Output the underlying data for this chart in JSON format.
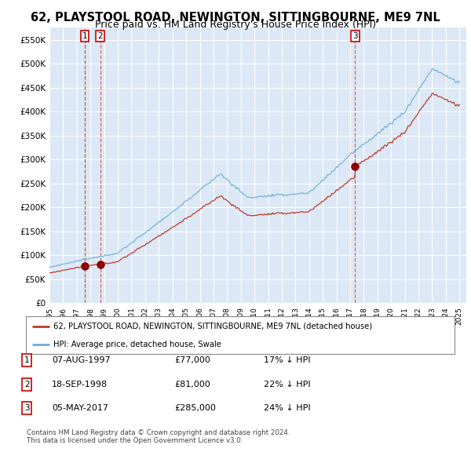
{
  "title": "62, PLAYSTOOL ROAD, NEWINGTON, SITTINGBOURNE, ME9 7NL",
  "subtitle": "Price paid vs. HM Land Registry's House Price Index (HPI)",
  "title_fontsize": 10.5,
  "subtitle_fontsize": 9,
  "background_color": "#dce8f5",
  "plot_bg_color": "#dce8f5",
  "grid_color": "#ffffff",
  "ylim": [
    0,
    575000
  ],
  "yticks": [
    0,
    50000,
    100000,
    150000,
    200000,
    250000,
    300000,
    350000,
    400000,
    450000,
    500000,
    550000
  ],
  "ytick_labels": [
    "£0",
    "£50K",
    "£100K",
    "£150K",
    "£200K",
    "£250K",
    "£300K",
    "£350K",
    "£400K",
    "£450K",
    "£500K",
    "£550K"
  ],
  "hpi_color": "#6baed6",
  "price_color": "#c0392b",
  "sale_marker_color": "#8b0000",
  "dashed_line_color_red": "#e74c3c",
  "dashed_line_color_blue": "#6baed6",
  "legend_label_price": "62, PLAYSTOOL ROAD, NEWINGTON, SITTINGBOURNE, ME9 7NL (detached house)",
  "legend_label_hpi": "HPI: Average price, detached house, Swale",
  "sales": [
    {
      "date_year": 1997.58,
      "price": 77000,
      "label": "1",
      "dashed": "both"
    },
    {
      "date_year": 1998.72,
      "price": 81000,
      "label": "2",
      "dashed": "red"
    },
    {
      "date_year": 2017.35,
      "price": 285000,
      "label": "3",
      "dashed": "red"
    }
  ],
  "footer_line1": "Contains HM Land Registry data © Crown copyright and database right 2024.",
  "footer_line2": "This data is licensed under the Open Government Licence v3.0.",
  "table_rows": [
    {
      "num": "1",
      "date": "07-AUG-1997",
      "price": "£77,000",
      "hpi": "17% ↓ HPI"
    },
    {
      "num": "2",
      "date": "18-SEP-1998",
      "price": "£81,000",
      "hpi": "22% ↓ HPI"
    },
    {
      "num": "3",
      "date": "05-MAY-2017",
      "price": "£285,000",
      "hpi": "24% ↓ HPI"
    }
  ]
}
